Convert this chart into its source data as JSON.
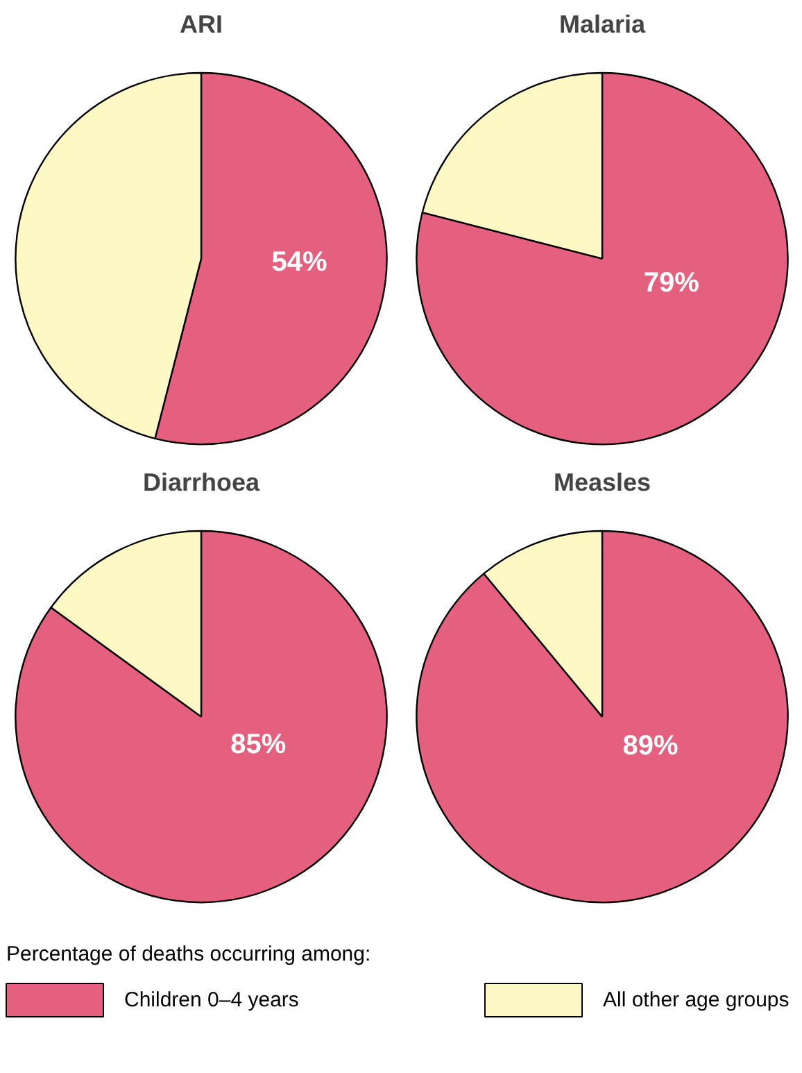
{
  "chart_data": [
    {
      "type": "pie",
      "title": "ARI",
      "categories": [
        "Children 0–4 years",
        "All other age groups"
      ],
      "values": [
        54,
        46
      ],
      "colors": [
        "#e5607e",
        "#fdf8c4"
      ],
      "value_labels": [
        "54%",
        null
      ],
      "legend": "bottom",
      "legend_title": "Percentage of deaths occurring among:"
    },
    {
      "type": "pie",
      "title": "Malaria",
      "categories": [
        null,
        null
      ],
      "values": [
        79,
        21
      ],
      "colors": [
        "#e5607e",
        "#fdf8c4"
      ],
      "value_labels": [
        "79%",
        null
      ]
    },
    {
      "type": "pie",
      "title": "Diarrhoea",
      "categories": [
        null,
        null
      ],
      "values": [
        85,
        15
      ],
      "colors": [
        "#e5607e",
        "#fdf8c4"
      ],
      "value_labels": [
        "85%",
        null
      ]
    },
    {
      "type": "pie",
      "title": "Measles",
      "categories": [
        null,
        null
      ],
      "values": [
        89,
        11
      ],
      "colors": [
        "#e5607e",
        "#fdf8c4"
      ],
      "value_labels": [
        "89%",
        null
      ]
    }
  ]
}
